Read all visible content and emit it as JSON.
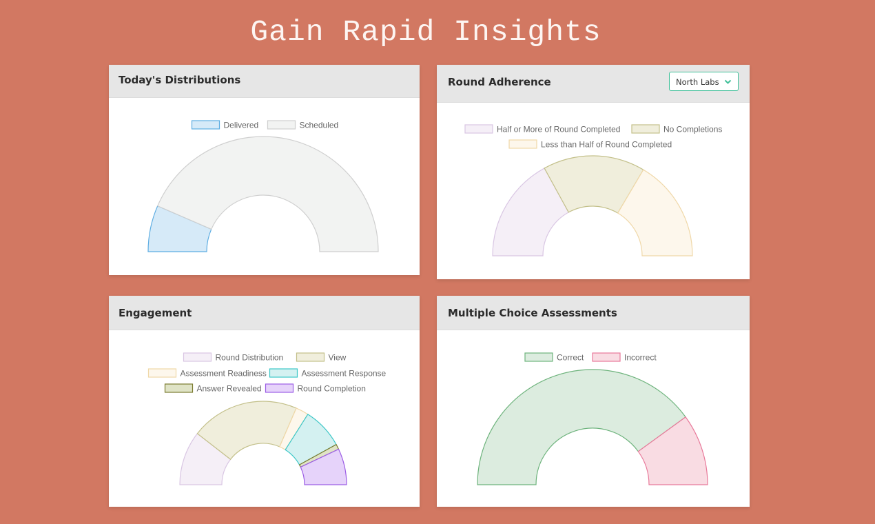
{
  "page": {
    "headline": "Gain Rapid Insights"
  },
  "colors": {
    "background": "#d27862",
    "dropdown_accent": "#3fbf98"
  },
  "cards": {
    "distributions": {
      "title": "Today's Distributions"
    },
    "adherence": {
      "title": "Round Adherence",
      "dropdown": {
        "selected": "North Labs",
        "icon": "chevron-down-icon"
      }
    },
    "engagement": {
      "title": "Engagement"
    },
    "assessments": {
      "title": "Multiple Choice Assessments"
    }
  },
  "chart_data": [
    {
      "id": "distributions",
      "type": "pie",
      "subtype": "semi-doughnut",
      "categories": [
        "Delivered",
        "Scheduled"
      ],
      "values": [
        13,
        87
      ],
      "colors": [
        {
          "fill": "#d6eaf8",
          "stroke": "#5dade2"
        },
        {
          "fill": "#f2f3f2",
          "stroke": "#cfcfcf"
        }
      ],
      "legend": "top"
    },
    {
      "id": "adherence",
      "type": "pie",
      "subtype": "semi-doughnut",
      "categories": [
        "Half or More of Round Completed",
        "No Completions",
        "Less than Half of Round Completed"
      ],
      "values": [
        34,
        33,
        33
      ],
      "colors": [
        {
          "fill": "#f5eff7",
          "stroke": "#d9c6e3"
        },
        {
          "fill": "#f0eedc",
          "stroke": "#c3c08a"
        },
        {
          "fill": "#fdf7ec",
          "stroke": "#f0d8a8"
        }
      ],
      "legend": "top"
    },
    {
      "id": "engagement",
      "type": "pie",
      "subtype": "semi-doughnut",
      "categories": [
        "Round Distribution",
        "View",
        "Assessment Readiness",
        "Assessment Response",
        "Answer Revealed",
        "Round Completion"
      ],
      "values": [
        21,
        42,
        5,
        16,
        2,
        14
      ],
      "colors": [
        {
          "fill": "#f5eff7",
          "stroke": "#d9c6e3"
        },
        {
          "fill": "#f0eedc",
          "stroke": "#c3c08a"
        },
        {
          "fill": "#fdf7ec",
          "stroke": "#f0d8a8"
        },
        {
          "fill": "#d4f1f1",
          "stroke": "#3cc7c7"
        },
        {
          "fill": "#dfe3c6",
          "stroke": "#7a7a2e"
        },
        {
          "fill": "#e6d3fa",
          "stroke": "#9b5de5"
        }
      ],
      "legend": "top"
    },
    {
      "id": "assessments",
      "type": "pie",
      "subtype": "semi-doughnut",
      "categories": [
        "Correct",
        "Incorrect"
      ],
      "values": [
        80,
        20
      ],
      "colors": [
        {
          "fill": "#dcecdf",
          "stroke": "#6db37c"
        },
        {
          "fill": "#f9dce3",
          "stroke": "#e8799a"
        }
      ],
      "legend": "top"
    }
  ]
}
